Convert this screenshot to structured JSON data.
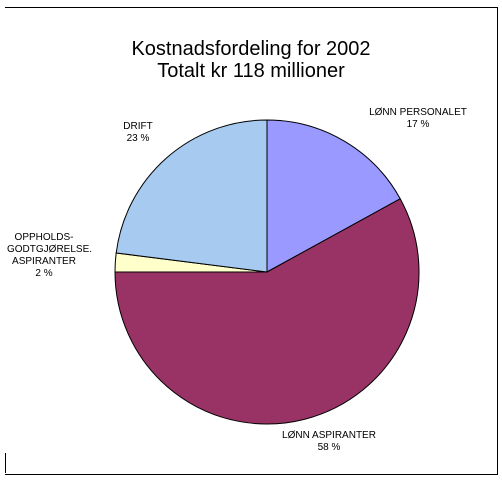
{
  "chart_data": {
    "type": "pie",
    "title": "Kostnadsfordeling for 2002",
    "subtitle": "Totalt kr 118 millioner",
    "slices": [
      {
        "label": "LØNN PERSONALET",
        "value": 17,
        "value_label": "17 %",
        "color": "#9999ff"
      },
      {
        "label": "LØNN ASPIRANTER",
        "value": 58,
        "value_label": "58 %",
        "color": "#993366"
      },
      {
        "label": "OPPHOLDS-\nGODTGJØRELSE.\nASPIRANTER",
        "value": 2,
        "value_label": "2 %",
        "color": "#ffffcc"
      },
      {
        "label": "DRIFT",
        "value": 23,
        "value_label": "23 %",
        "color": "#a6caf0"
      }
    ]
  }
}
